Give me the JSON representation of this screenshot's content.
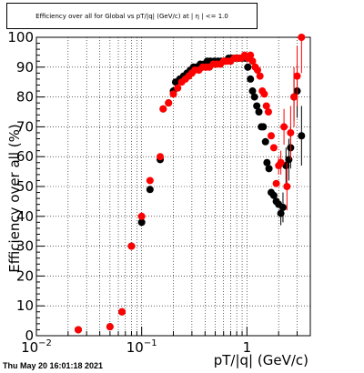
{
  "title": "Efficiency over all for Global vs pT/|q| (GeV/c) at | η | <= 1.0",
  "timestamp": "Thu May 20 16:01:18 2021",
  "chart_data": {
    "type": "scatter",
    "title": "Efficiency over all for Global vs pT/|q| (GeV/c) at | η | <= 1.0",
    "xlabel": "pT/|q| (GeV/c)",
    "ylabel": "Efficiency over all (%)",
    "xscale": "log",
    "xlim": [
      0.01,
      4.0
    ],
    "ylim": [
      0,
      100
    ],
    "xticks": [
      {
        "label": "10",
        "exp": "−2",
        "value": 0.01
      },
      {
        "label": "10",
        "exp": "−1",
        "value": 0.1
      },
      {
        "label": "1",
        "exp": "",
        "value": 1
      }
    ],
    "yticks": [
      "0",
      "10",
      "20",
      "30",
      "40",
      "50",
      "60",
      "70",
      "80",
      "90",
      "100"
    ],
    "grid": true,
    "series": [
      {
        "color": "#000000",
        "points": [
          [
            0.025,
            2,
            0.015,
            0
          ],
          [
            0.05,
            3,
            0.005,
            0
          ],
          [
            0.065,
            8,
            0,
            0
          ],
          [
            0.08,
            30,
            0,
            0
          ],
          [
            0.1,
            38,
            0.01,
            0
          ],
          [
            0.12,
            49,
            0,
            0
          ],
          [
            0.15,
            59,
            0,
            0
          ],
          [
            0.16,
            76,
            0,
            0
          ],
          [
            0.18,
            78,
            0,
            0
          ],
          [
            0.2,
            82,
            0,
            0
          ],
          [
            0.21,
            85,
            0,
            0
          ],
          [
            0.23,
            86,
            0,
            0
          ],
          [
            0.25,
            87,
            0,
            0
          ],
          [
            0.27,
            88,
            0,
            0
          ],
          [
            0.29,
            89,
            0,
            0
          ],
          [
            0.31,
            90,
            0,
            0
          ],
          [
            0.33,
            90,
            0,
            0
          ],
          [
            0.36,
            91,
            0,
            0
          ],
          [
            0.39,
            91,
            0,
            0
          ],
          [
            0.42,
            92,
            0,
            0
          ],
          [
            0.45,
            92,
            0,
            0
          ],
          [
            0.49,
            92,
            0,
            0
          ],
          [
            0.53,
            92,
            0,
            0
          ],
          [
            0.57,
            92,
            0,
            0
          ],
          [
            0.62,
            92,
            0,
            0
          ],
          [
            0.67,
            93,
            0,
            0
          ],
          [
            0.72,
            93,
            0,
            0
          ],
          [
            0.78,
            93,
            0,
            0
          ],
          [
            0.84,
            93,
            0,
            0
          ],
          [
            0.9,
            93,
            0,
            0
          ],
          [
            0.97,
            93,
            0,
            0
          ],
          [
            1.02,
            90,
            0,
            0
          ],
          [
            1.08,
            86,
            0,
            0
          ],
          [
            1.13,
            82,
            0,
            0
          ],
          [
            1.18,
            80,
            0,
            0
          ],
          [
            1.24,
            77,
            0,
            0
          ],
          [
            1.3,
            75,
            0,
            0
          ],
          [
            1.37,
            70,
            0,
            0
          ],
          [
            1.43,
            70,
            0,
            0
          ],
          [
            1.5,
            65,
            0,
            0
          ],
          [
            1.55,
            58,
            0,
            0
          ],
          [
            1.62,
            56,
            0,
            0
          ],
          [
            1.7,
            48,
            0,
            0
          ],
          [
            1.8,
            47,
            0,
            0
          ],
          [
            1.9,
            45,
            0,
            0
          ],
          [
            2.0,
            44,
            0,
            0
          ],
          [
            2.1,
            41,
            4,
            0
          ],
          [
            2.2,
            43,
            5,
            0
          ],
          [
            2.35,
            57,
            6,
            0
          ],
          [
            2.5,
            59,
            7,
            0
          ],
          [
            2.6,
            63,
            7,
            0
          ],
          [
            2.8,
            80,
            8,
            0
          ],
          [
            3.0,
            82,
            9,
            0
          ],
          [
            3.3,
            67,
            10,
            0
          ]
        ]
      },
      {
        "color": "#ff0000",
        "points": [
          [
            0.025,
            2,
            0.015,
            0
          ],
          [
            0.05,
            3,
            0.005,
            0
          ],
          [
            0.065,
            8,
            0,
            0
          ],
          [
            0.08,
            30,
            0,
            0
          ],
          [
            0.1,
            40,
            0.01,
            0
          ],
          [
            0.12,
            52,
            0,
            0
          ],
          [
            0.15,
            60,
            0,
            0
          ],
          [
            0.16,
            76,
            0,
            0
          ],
          [
            0.18,
            78,
            0,
            0
          ],
          [
            0.2,
            81,
            0,
            0
          ],
          [
            0.22,
            83,
            0,
            0
          ],
          [
            0.24,
            85,
            0,
            0
          ],
          [
            0.26,
            86,
            0,
            0
          ],
          [
            0.28,
            87,
            0,
            0
          ],
          [
            0.3,
            88,
            0,
            0
          ],
          [
            0.32,
            89,
            0,
            0
          ],
          [
            0.35,
            89,
            0,
            0
          ],
          [
            0.38,
            90,
            0,
            0
          ],
          [
            0.41,
            90,
            0,
            0
          ],
          [
            0.44,
            90,
            0,
            0
          ],
          [
            0.48,
            91,
            0,
            0
          ],
          [
            0.52,
            91,
            0,
            0
          ],
          [
            0.56,
            91,
            0,
            0
          ],
          [
            0.6,
            92,
            0,
            0
          ],
          [
            0.65,
            92,
            0,
            0
          ],
          [
            0.7,
            92,
            0,
            0
          ],
          [
            0.76,
            93,
            0,
            0
          ],
          [
            0.82,
            93,
            0,
            0
          ],
          [
            0.88,
            93,
            0,
            0
          ],
          [
            0.95,
            94,
            0,
            0
          ],
          [
            1.02,
            93,
            0,
            0
          ],
          [
            1.08,
            94,
            0,
            0
          ],
          [
            1.13,
            92,
            0,
            0
          ],
          [
            1.2,
            90,
            0,
            0
          ],
          [
            1.26,
            89,
            0,
            0
          ],
          [
            1.33,
            87,
            0,
            0
          ],
          [
            1.4,
            82,
            0,
            0
          ],
          [
            1.46,
            81,
            0,
            0
          ],
          [
            1.53,
            77,
            0,
            0
          ],
          [
            1.6,
            75,
            0,
            0
          ],
          [
            1.7,
            67,
            0,
            0
          ],
          [
            1.8,
            63,
            0,
            0
          ],
          [
            1.9,
            51,
            0,
            0
          ],
          [
            2.0,
            57,
            3,
            0
          ],
          [
            2.1,
            58,
            4,
            0
          ],
          [
            2.25,
            70,
            6,
            0
          ],
          [
            2.4,
            50,
            8,
            0
          ],
          [
            2.6,
            68,
            9,
            0
          ],
          [
            2.8,
            80,
            10,
            0
          ],
          [
            3.0,
            87,
            10,
            0
          ],
          [
            3.3,
            100,
            12,
            0
          ]
        ]
      }
    ]
  }
}
